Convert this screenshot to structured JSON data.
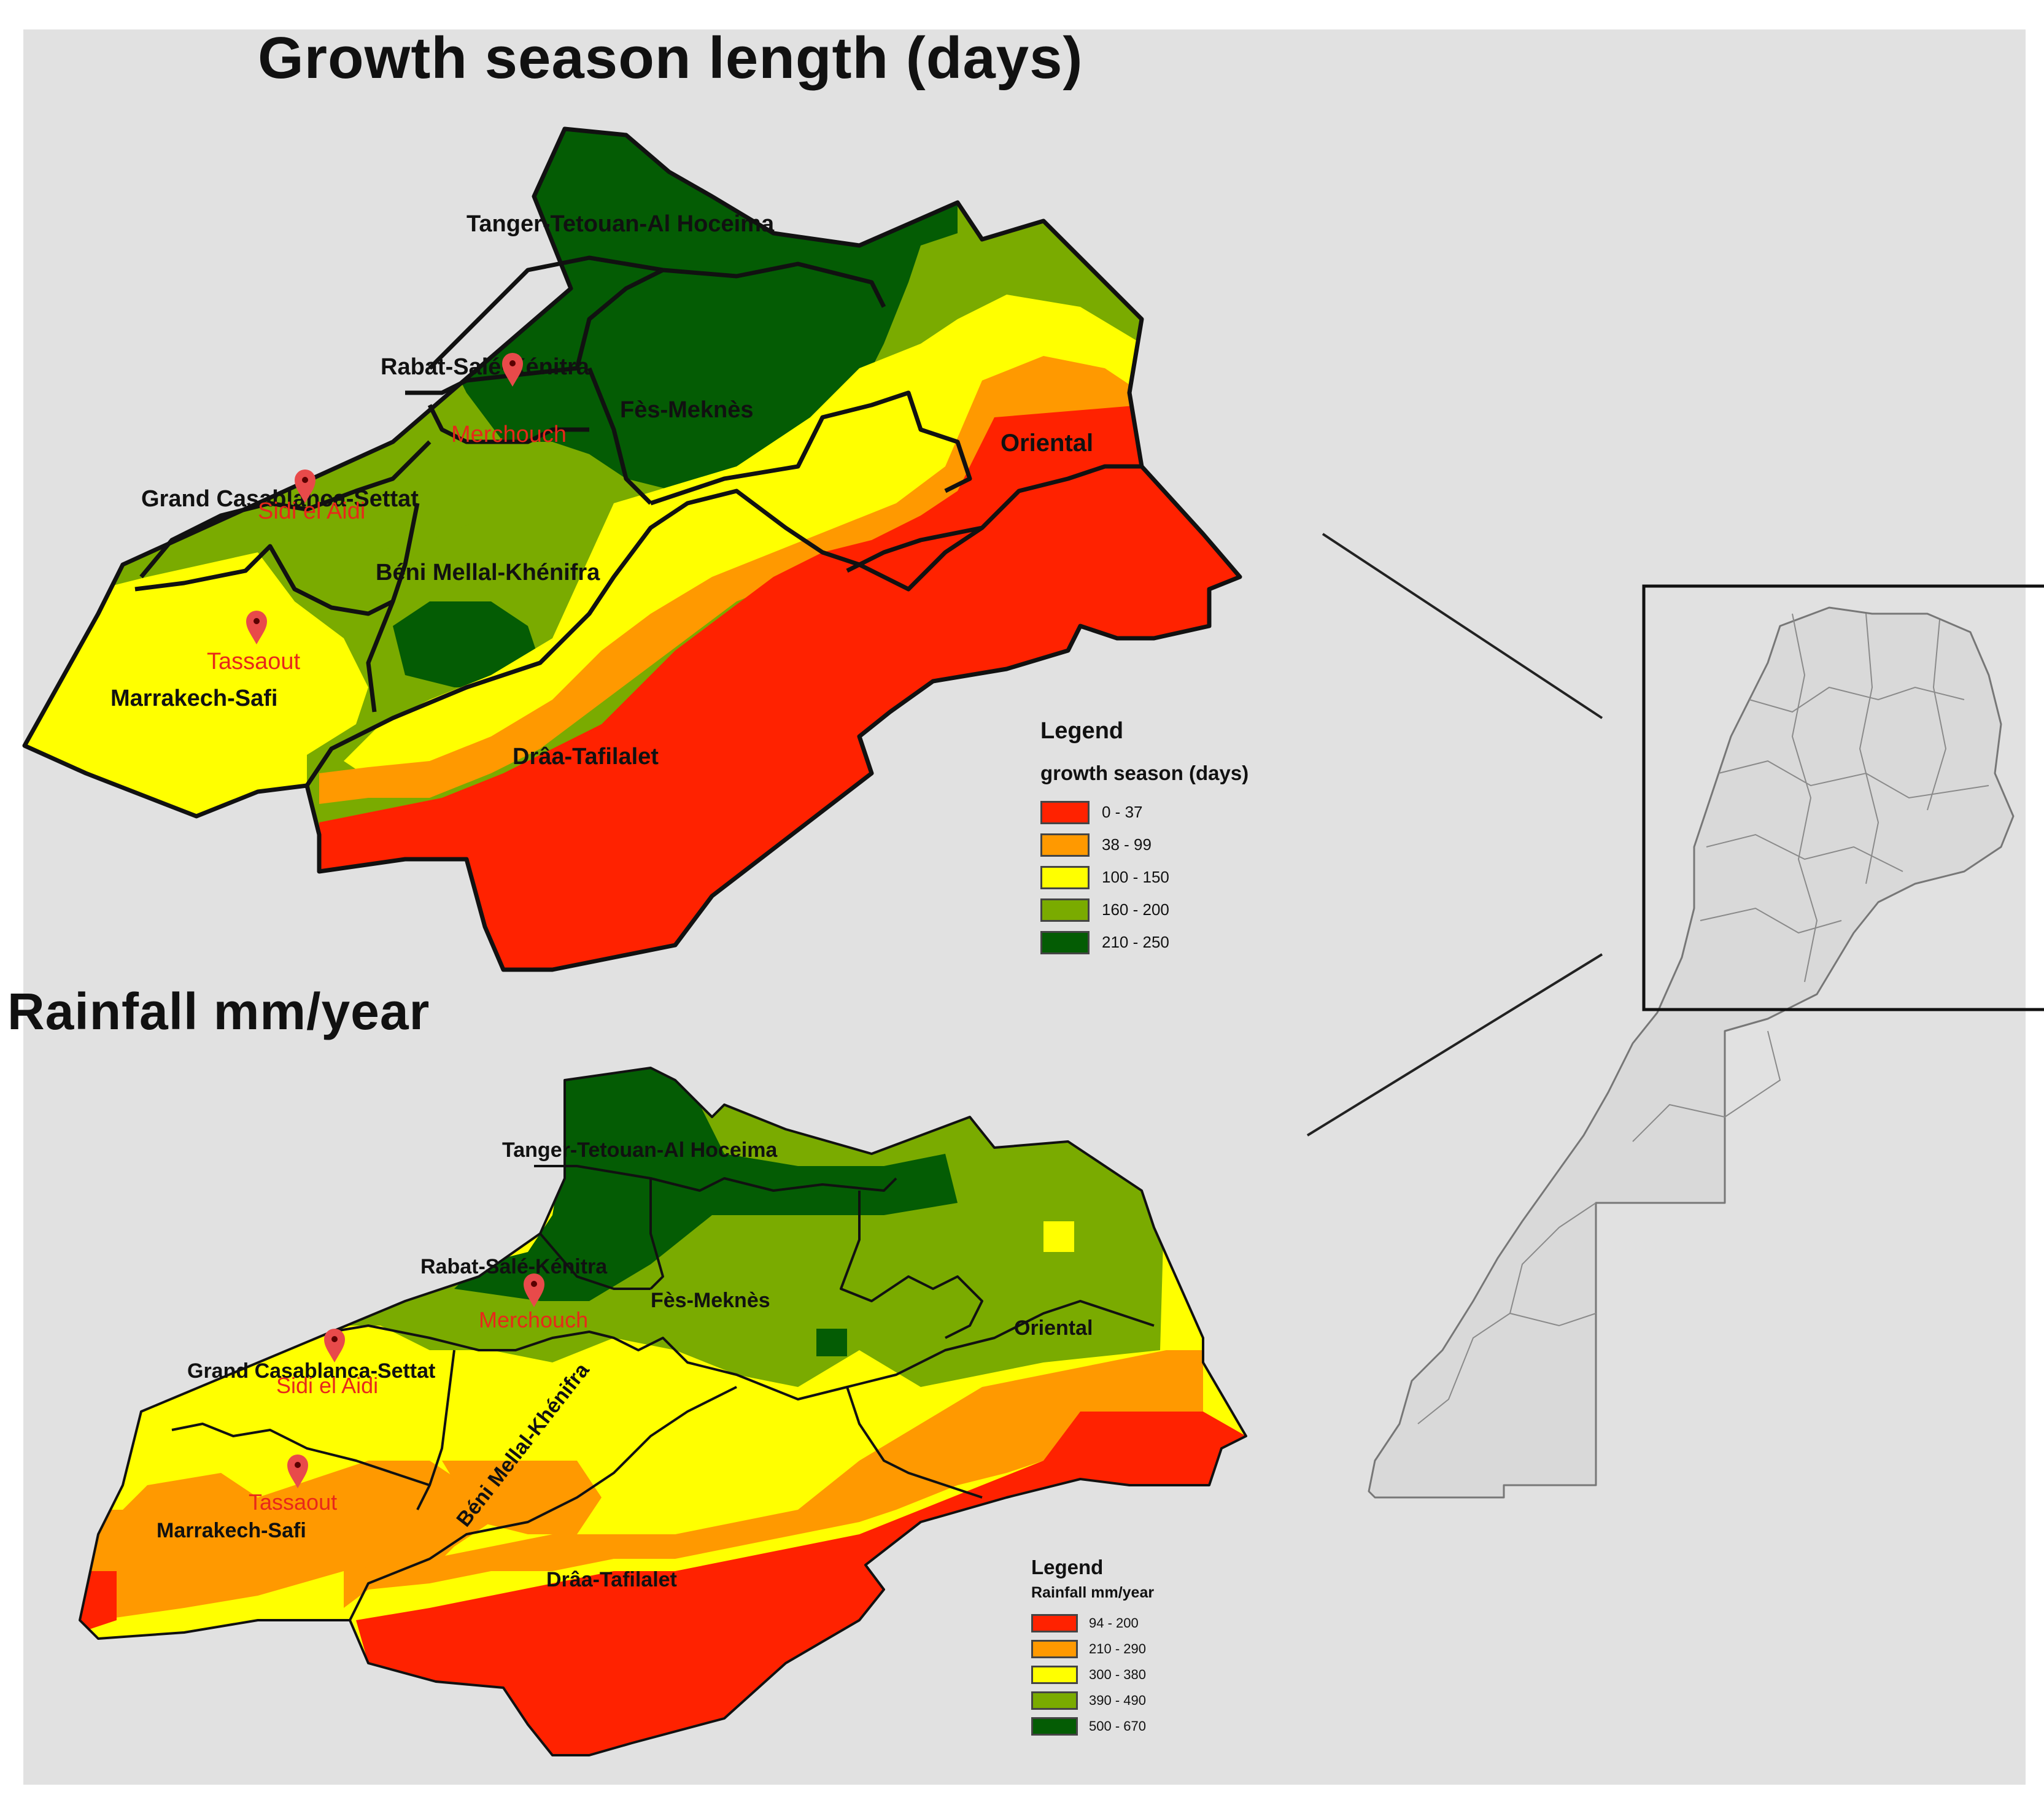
{
  "titles": {
    "top": "Growth season length (days)",
    "bottom": "Rainfall mm/year"
  },
  "regions": {
    "tanger": "Tanger-Tetouan-Al Hoceima",
    "rabat": "Rabat-Salé-Kénitra",
    "fes": "Fès-Meknès",
    "oriental": "Oriental",
    "casablanca": "Grand Casablanca-Settat",
    "beni": "Béni Mellal-Khénifra",
    "marrakech": "Marrakech-Safi",
    "draa": "Drâa-Tafilalet"
  },
  "sites": {
    "merchouch": "Merchouch",
    "sidi": "Sidi el Aidi",
    "tassaout": "Tassaout"
  },
  "legend_top": {
    "heading": "Legend",
    "subtitle": "growth season (days)",
    "classes": [
      {
        "label": "0 - 37",
        "color": "#ff2200"
      },
      {
        "label": "38 - 99",
        "color": "#ff9900"
      },
      {
        "label": "100 - 150",
        "color": "#ffff00"
      },
      {
        "label": "160 - 200",
        "color": "#7aab00"
      },
      {
        "label": "210 - 250",
        "color": "#045c04"
      }
    ]
  },
  "legend_bottom": {
    "heading": "Legend",
    "subtitle": "Rainfall mm/year",
    "classes": [
      {
        "label": "94 - 200",
        "color": "#ff2200"
      },
      {
        "label": "210 - 290",
        "color": "#ff9900"
      },
      {
        "label": "300 - 380",
        "color": "#ffff00"
      },
      {
        "label": "390 - 490",
        "color": "#7aab00"
      },
      {
        "label": "500 - 670",
        "color": "#045c04"
      }
    ]
  }
}
